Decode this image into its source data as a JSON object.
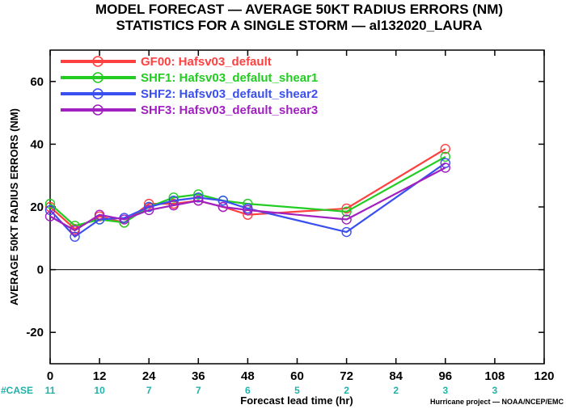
{
  "chart_data": {
    "type": "line",
    "title": "MODEL FORECAST — AVERAGE 50KT RADIUS ERRORS (NM)",
    "subtitle": "STATISTICS FOR A SINGLE STORM — al132020_LAURA",
    "xlabel": "Forecast lead time (hr)",
    "ylabel": "AVERAGE 50KT RADIUS ERRORS (NM)",
    "xlim": [
      0,
      120
    ],
    "ylim": [
      -30,
      70
    ],
    "xticks": [
      0,
      12,
      24,
      36,
      48,
      60,
      72,
      84,
      96,
      108,
      120
    ],
    "yticks": [
      -20,
      0,
      20,
      40,
      60
    ],
    "zero_line": true,
    "legend_position": "top-left",
    "credit": "Hurricane project — NOAA/NCEP/EMC",
    "case_label": "#CASE",
    "cases": [
      {
        "x": 0,
        "n": "11"
      },
      {
        "x": 12,
        "n": "10"
      },
      {
        "x": 24,
        "n": "7"
      },
      {
        "x": 36,
        "n": "7"
      },
      {
        "x": 48,
        "n": "6"
      },
      {
        "x": 60,
        "n": "5"
      },
      {
        "x": 72,
        "n": "2"
      },
      {
        "x": 84,
        "n": "2"
      },
      {
        "x": 96,
        "n": "3"
      },
      {
        "x": 108,
        "n": "3"
      }
    ],
    "series": [
      {
        "name": "GF00: Hafsv03_default",
        "color": "#ff4040",
        "x": [
          0,
          6,
          12,
          18,
          24,
          30,
          36,
          42,
          48,
          72,
          96
        ],
        "y": [
          20,
          13,
          17,
          15,
          21,
          21,
          22,
          20,
          17.5,
          19.5,
          38.5
        ]
      },
      {
        "name": "SHF1: Hafsv03_defalut_shear1",
        "color": "#22cc22",
        "x": [
          0,
          6,
          12,
          18,
          24,
          30,
          36,
          42,
          48,
          72,
          96
        ],
        "y": [
          21,
          14,
          16,
          15,
          20,
          23,
          24,
          22,
          21,
          18.5,
          36
        ]
      },
      {
        "name": "SHF2: Hafsv03_default_shear2",
        "color": "#3a4ff0",
        "x": [
          0,
          6,
          12,
          18,
          24,
          30,
          36,
          42,
          48,
          72,
          96
        ],
        "y": [
          19,
          10.5,
          16,
          16.5,
          20,
          22,
          23,
          22,
          19.5,
          12,
          34
        ]
      },
      {
        "name": "SHF3: Hafsv03_default_shear3",
        "color": "#a020c0",
        "x": [
          0,
          6,
          12,
          18,
          24,
          30,
          36,
          42,
          48,
          72,
          96
        ],
        "y": [
          17,
          12.5,
          17.5,
          16,
          19,
          20.5,
          22,
          20,
          19,
          16,
          32.5
        ]
      }
    ]
  }
}
